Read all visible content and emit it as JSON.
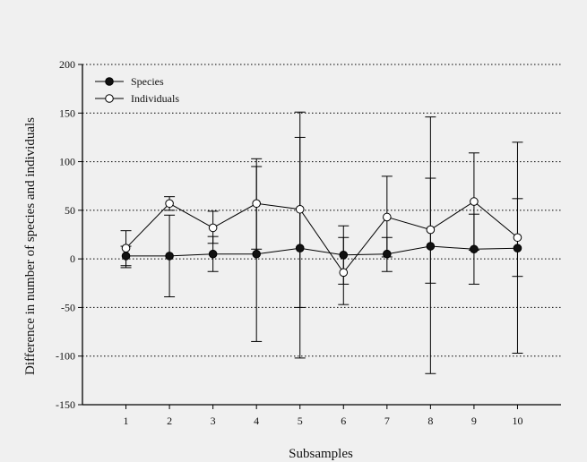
{
  "chart_data": {
    "type": "line",
    "title": "",
    "xlabel": "Subsamples",
    "ylabel": "Difference in number of species and individuals",
    "x": [
      1,
      2,
      3,
      4,
      5,
      6,
      7,
      8,
      9,
      10
    ],
    "xlim": [
      0,
      11
    ],
    "ylim": [
      -150,
      200
    ],
    "yticks": [
      -150,
      -100,
      -50,
      0,
      50,
      100,
      150,
      200
    ],
    "grid": "horizontal dotted",
    "legend_position": "top-left",
    "series": [
      {
        "name": "Species",
        "marker": "filled-circle",
        "color": "#000000",
        "values": [
          3,
          3,
          5,
          5,
          11,
          4,
          5,
          13,
          10,
          11
        ],
        "error_low": [
          -7,
          -39,
          -13,
          -85,
          -102,
          -26,
          -13,
          -25,
          -26,
          -18
        ],
        "error_high": [
          13,
          45,
          23,
          95,
          125,
          22,
          22,
          83,
          46,
          62
        ]
      },
      {
        "name": "Individuals",
        "marker": "open-circle",
        "color": "#000000",
        "values": [
          11,
          57,
          32,
          57,
          51,
          -14,
          43,
          30,
          59,
          22
        ],
        "error_low": [
          -9,
          50,
          16,
          10,
          -50,
          -47,
          2,
          -118,
          9,
          -97
        ],
        "error_high": [
          29,
          64,
          49,
          103,
          151,
          34,
          85,
          146,
          109,
          120
        ]
      }
    ]
  },
  "colors": {
    "background": "#f0f0f0",
    "axes": "#000000",
    "grid": "#000000"
  }
}
